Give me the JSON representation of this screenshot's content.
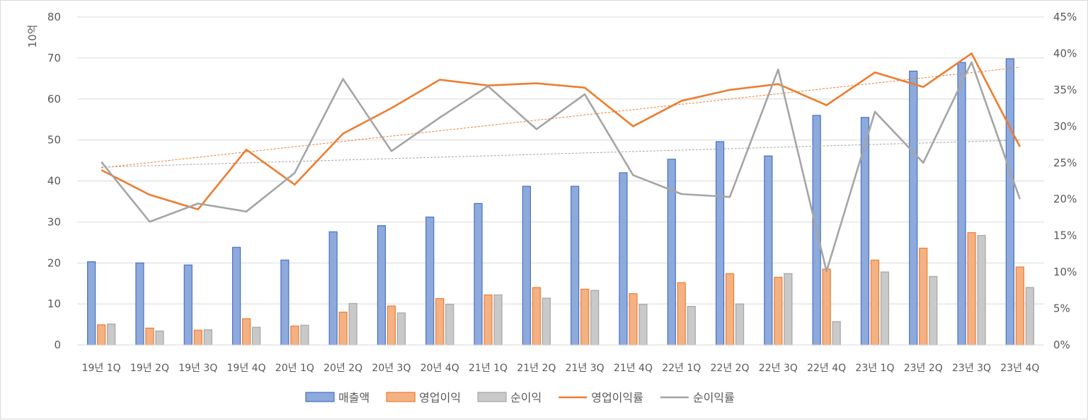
{
  "chart_data": {
    "type": "bar",
    "categories": [
      "19년 1Q",
      "19년 2Q",
      "19년 3Q",
      "19년 4Q",
      "20년 1Q",
      "20년 2Q",
      "20년 3Q",
      "20년 4Q",
      "21년 1Q",
      "21년 2Q",
      "21년 3Q",
      "21년 4Q",
      "22년 1Q",
      "22년 2Q",
      "22년 3Q",
      "22년 4Q",
      "23년 1Q",
      "23년 2Q",
      "23년 3Q",
      "23년 4Q"
    ],
    "ylabel": "10억",
    "ylim": [
      0,
      80
    ],
    "y_ticks": [
      "0",
      "10",
      "20",
      "30",
      "40",
      "50",
      "60",
      "70",
      "80"
    ],
    "y2lim": [
      0,
      0.45
    ],
    "y2_ticks": [
      "0%",
      "5%",
      "10%",
      "15%",
      "20%",
      "25%",
      "30%",
      "35%",
      "40%",
      "45%"
    ],
    "grid": true,
    "legend_position": "bottom",
    "bar_series": [
      {
        "name": "매출액",
        "color": "#8ea9db",
        "edge": "#4472c4",
        "values": [
          20.3,
          20.0,
          19.5,
          23.8,
          20.7,
          27.6,
          29.1,
          31.2,
          34.5,
          38.7,
          38.7,
          42.0,
          45.3,
          49.6,
          46.1,
          56.0,
          55.5,
          66.8,
          68.9,
          69.8
        ]
      },
      {
        "name": "영업이익",
        "color": "#f4b183",
        "edge": "#ed7d31",
        "values": [
          4.9,
          4.1,
          3.6,
          6.4,
          4.6,
          8.0,
          9.5,
          11.3,
          12.2,
          14.0,
          13.6,
          12.5,
          15.2,
          17.4,
          16.5,
          18.5,
          20.7,
          23.6,
          27.4,
          19.0
        ]
      },
      {
        "name": "순이익",
        "color": "#c9c9c9",
        "edge": "#a5a5a5",
        "values": [
          5.1,
          3.4,
          3.7,
          4.3,
          4.8,
          10.1,
          7.8,
          9.9,
          12.2,
          11.4,
          13.3,
          9.9,
          9.4,
          10.0,
          17.4,
          5.7,
          17.8,
          16.7,
          26.7,
          14.0
        ]
      }
    ],
    "line_series": [
      {
        "name": "영업이익률",
        "color": "#ed7d31",
        "axis": "secondary",
        "values": [
          0.24,
          0.206,
          0.186,
          0.268,
          0.22,
          0.29,
          0.325,
          0.364,
          0.356,
          0.359,
          0.353,
          0.3,
          0.335,
          0.35,
          0.358,
          0.329,
          0.374,
          0.354,
          0.4,
          0.272
        ]
      },
      {
        "name": "순이익률",
        "color": "#a5a5a5",
        "axis": "secondary",
        "values": [
          0.251,
          0.169,
          0.194,
          0.183,
          0.236,
          0.365,
          0.266,
          0.312,
          0.355,
          0.296,
          0.344,
          0.233,
          0.207,
          0.203,
          0.378,
          0.101,
          0.32,
          0.25,
          0.388,
          0.2
        ]
      }
    ],
    "trendlines": [
      {
        "of": "영업이익률",
        "color": "#ed7d31",
        "style": "dotted",
        "start": 0.243,
        "end": 0.381
      },
      {
        "of": "순이익률",
        "color": "#a5a5a5",
        "style": "dotted",
        "start": 0.244,
        "end": 0.281
      }
    ]
  }
}
